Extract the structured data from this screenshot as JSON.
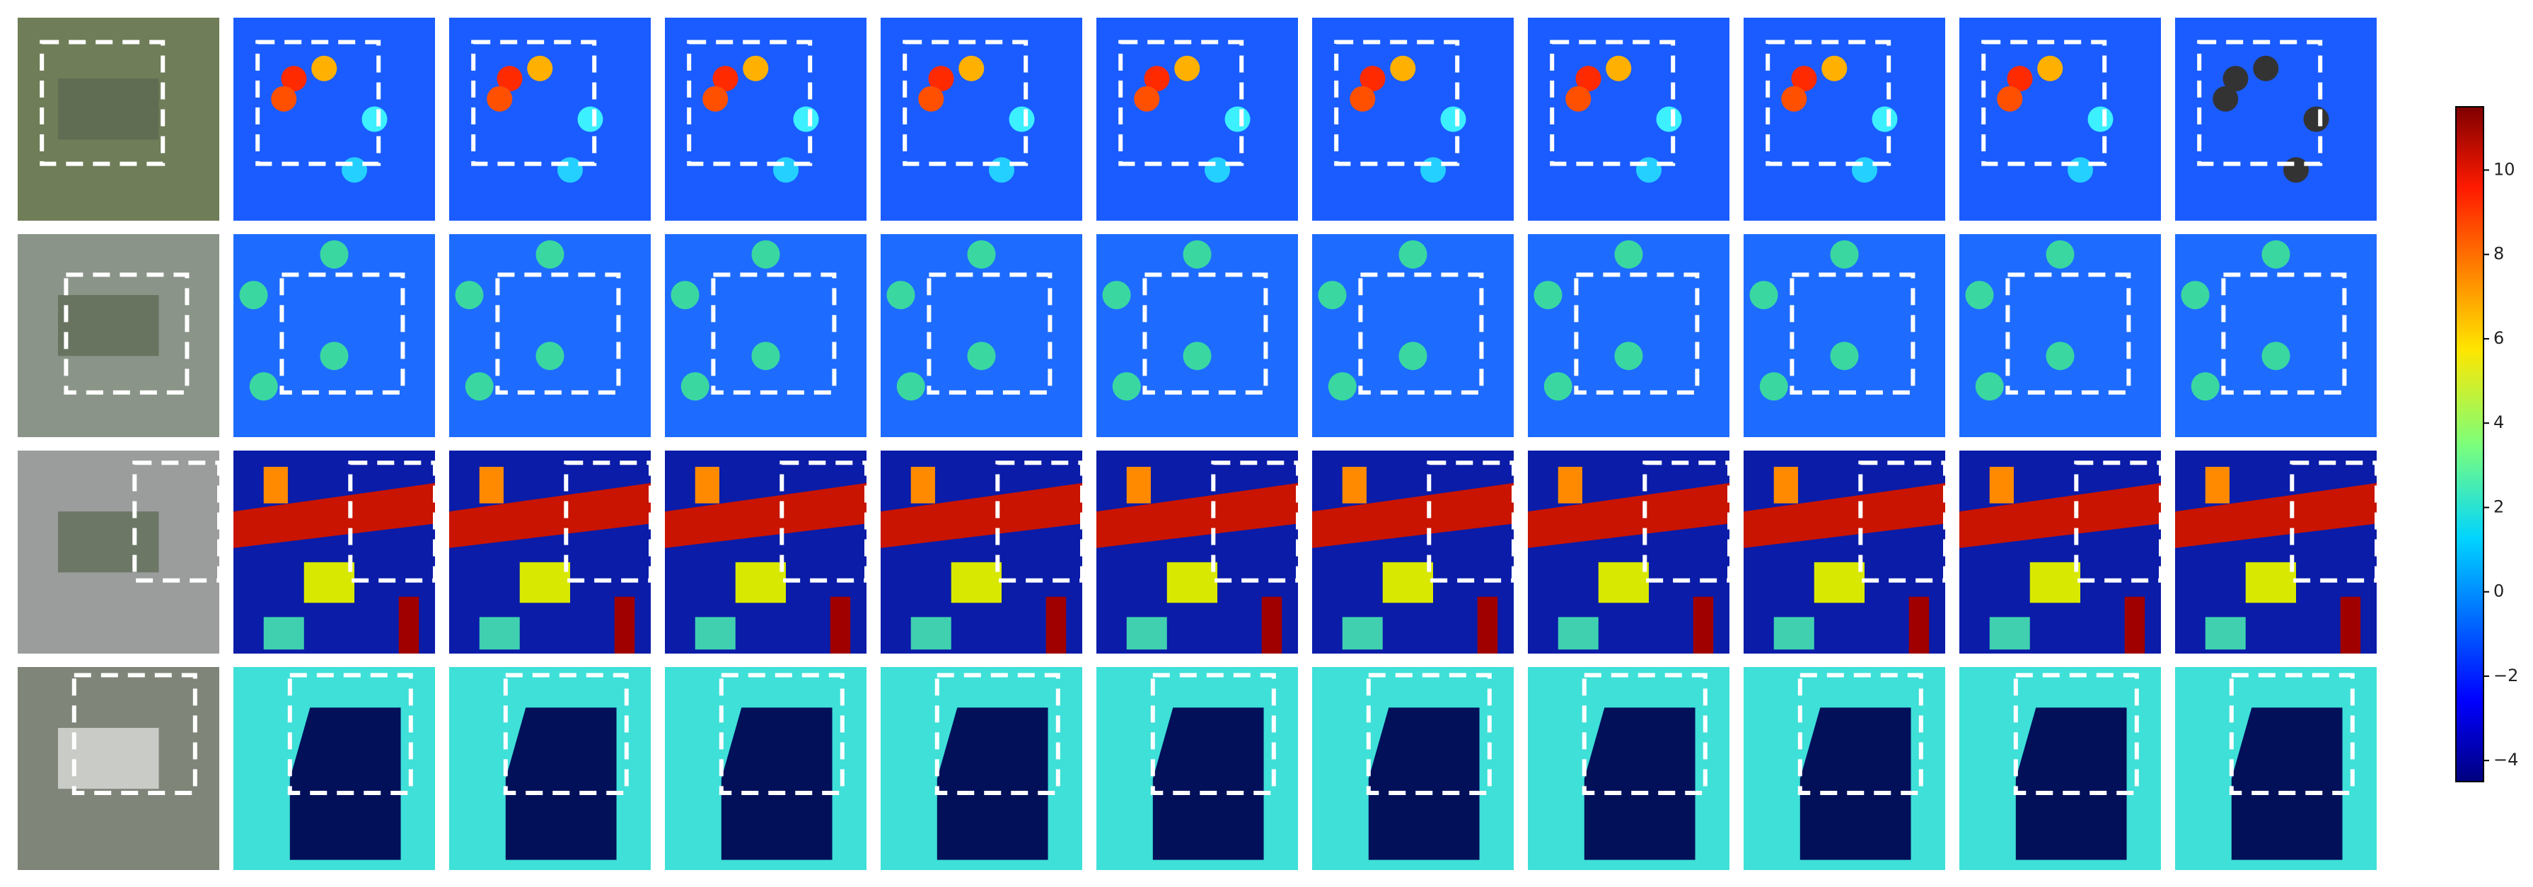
{
  "colorbar": {
    "lim": [
      -4.5,
      11.5
    ],
    "ticks": [
      {
        "value": -4,
        "label": "−4"
      },
      {
        "value": -2,
        "label": "−2"
      },
      0,
      2,
      4,
      6,
      8,
      10
    ]
  }
}
